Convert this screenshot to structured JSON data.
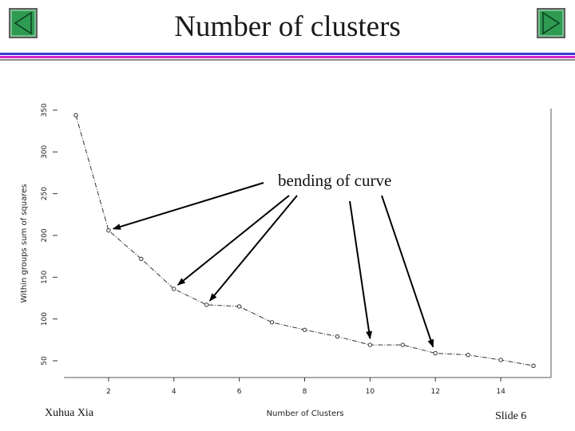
{
  "slide": {
    "title": "Number of clusters",
    "author": "Xuhua Xia",
    "slide_number": "Slide 6",
    "annotation": "bending of curve",
    "colors": {
      "nav_button_fill": "#2e9a52",
      "nav_button_border": "#5e5e5e",
      "rule_blue": "#3b3bd1",
      "rule_magenta": "#d126c8",
      "rule_gray": "#8a8a8a"
    },
    "icons": {
      "prev": "triangle-left-icon",
      "next": "triangle-right-icon"
    }
  },
  "chart_data": {
    "type": "line",
    "title": "",
    "xlabel": "Number of Clusters",
    "ylabel": "Within groups sum of squares",
    "x": [
      1,
      2,
      3,
      4,
      5,
      6,
      7,
      8,
      9,
      10,
      11,
      12,
      13,
      14,
      15
    ],
    "y": [
      344,
      206,
      172,
      136,
      117,
      115,
      96,
      87,
      79,
      69,
      69,
      59,
      57,
      51,
      44
    ],
    "xlim": [
      0.6,
      15.6
    ],
    "ylim": [
      42,
      350
    ],
    "x_ticks": [
      2,
      4,
      6,
      8,
      10,
      12,
      14
    ],
    "y_ticks": [
      50,
      100,
      150,
      200,
      250,
      300,
      350
    ],
    "annotations": [
      {
        "text": "bending of curve",
        "points_to_x": [
          2,
          4,
          5,
          10,
          12
        ]
      }
    ]
  }
}
